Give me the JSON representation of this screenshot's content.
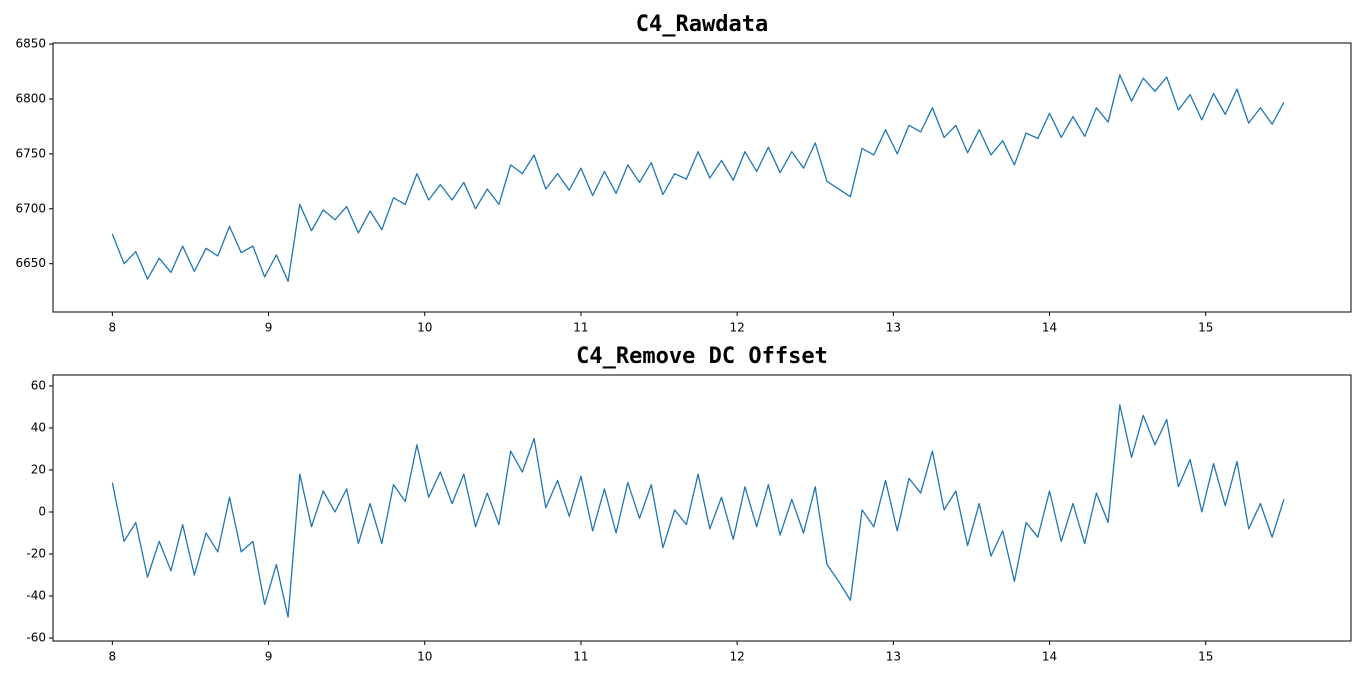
{
  "chart_data": [
    {
      "type": "line",
      "title": "C4_Rawdata",
      "x": [
        8.0,
        8.075,
        8.15,
        8.225,
        8.3,
        8.375,
        8.45,
        8.525,
        8.6,
        8.675,
        8.75,
        8.825,
        8.9,
        8.975,
        9.05,
        9.125,
        9.2,
        9.275,
        9.35,
        9.425,
        9.5,
        9.575,
        9.65,
        9.725,
        9.8,
        9.875,
        9.95,
        10.025,
        10.1,
        10.175,
        10.25,
        10.325,
        10.4,
        10.475,
        10.55,
        10.625,
        10.7,
        10.775,
        10.85,
        10.925,
        11.0,
        11.075,
        11.15,
        11.225,
        11.3,
        11.375,
        11.45,
        11.525,
        11.6,
        11.675,
        11.75,
        11.825,
        11.9,
        11.975,
        12.05,
        12.125,
        12.2,
        12.275,
        12.35,
        12.425,
        12.5,
        12.575,
        12.65,
        12.725,
        12.8,
        12.875,
        12.95,
        13.025,
        13.1,
        13.175,
        13.25,
        13.325,
        13.4,
        13.475,
        13.55,
        13.625,
        13.7,
        13.775,
        13.85,
        13.925,
        14.0,
        14.075,
        14.15,
        14.225,
        14.3,
        14.375,
        14.45,
        14.525,
        14.6,
        14.675,
        14.75,
        14.825,
        14.9,
        14.975,
        15.05,
        15.125,
        15.2,
        15.275,
        15.35,
        15.425,
        15.5
      ],
      "series": [
        {
          "color": "#1f77b4",
          "values": [
            6677,
            6650,
            6661,
            6636,
            6655,
            6642,
            6666,
            6643,
            6664,
            6657,
            6684,
            6660,
            6666,
            6638,
            6658,
            6634,
            6704,
            6680,
            6699,
            6690,
            6702,
            6678,
            6698,
            6681,
            6710,
            6704,
            6732,
            6708,
            6722,
            6708,
            6724,
            6700,
            6718,
            6704,
            6740,
            6732,
            6749,
            6718,
            6732,
            6717,
            6737,
            6712,
            6734,
            6714,
            6740,
            6724,
            6742,
            6713,
            6732,
            6727,
            6752,
            6728,
            6744,
            6726,
            6752,
            6734,
            6756,
            6733,
            6752,
            6737,
            6760,
            6725,
            6718,
            6711,
            6755,
            6749,
            6772,
            6750,
            6776,
            6770,
            6792,
            6765,
            6776,
            6751,
            6772,
            6749,
            6762,
            6740,
            6769,
            6764,
            6787,
            6765,
            6784,
            6766,
            6792,
            6779,
            6822,
            6798,
            6819,
            6807,
            6820,
            6790,
            6804,
            6781,
            6805,
            6786,
            6809,
            6778,
            6792,
            6777,
            6797
          ]
        }
      ],
      "xlim": [
        7.62,
        15.93
      ],
      "xticks": [
        8,
        9,
        10,
        11,
        12,
        13,
        14,
        15
      ],
      "ylim": [
        6606,
        6851
      ],
      "yticks": [
        6650,
        6700,
        6750,
        6800,
        6850
      ]
    },
    {
      "type": "line",
      "title": "C4_Remove DC Offset",
      "x": [
        8.0,
        8.075,
        8.15,
        8.225,
        8.3,
        8.375,
        8.45,
        8.525,
        8.6,
        8.675,
        8.75,
        8.825,
        8.9,
        8.975,
        9.05,
        9.125,
        9.2,
        9.275,
        9.35,
        9.425,
        9.5,
        9.575,
        9.65,
        9.725,
        9.8,
        9.875,
        9.95,
        10.025,
        10.1,
        10.175,
        10.25,
        10.325,
        10.4,
        10.475,
        10.55,
        10.625,
        10.7,
        10.775,
        10.85,
        10.925,
        11.0,
        11.075,
        11.15,
        11.225,
        11.3,
        11.375,
        11.45,
        11.525,
        11.6,
        11.675,
        11.75,
        11.825,
        11.9,
        11.975,
        12.05,
        12.125,
        12.2,
        12.275,
        12.35,
        12.425,
        12.5,
        12.575,
        12.65,
        12.725,
        12.8,
        12.875,
        12.95,
        13.025,
        13.1,
        13.175,
        13.25,
        13.325,
        13.4,
        13.475,
        13.55,
        13.625,
        13.7,
        13.775,
        13.85,
        13.925,
        14.0,
        14.075,
        14.15,
        14.225,
        14.3,
        14.375,
        14.45,
        14.525,
        14.6,
        14.675,
        14.75,
        14.825,
        14.9,
        14.975,
        15.05,
        15.125,
        15.2,
        15.275,
        15.35,
        15.425,
        15.5
      ],
      "series": [
        {
          "color": "#1f77b4",
          "values": [
            14,
            -14,
            -5,
            -31,
            -14,
            -28,
            -6,
            -30,
            -10,
            -19,
            7,
            -19,
            -14,
            -44,
            -25,
            -50,
            18,
            -7,
            10,
            0,
            11,
            -15,
            4,
            -15,
            13,
            5,
            32,
            7,
            19,
            4,
            18,
            -7,
            9,
            -6,
            29,
            19,
            35,
            2,
            15,
            -2,
            17,
            -9,
            11,
            -10,
            14,
            -3,
            13,
            -17,
            1,
            -6,
            18,
            -8,
            7,
            -13,
            12,
            -7,
            13,
            -11,
            6,
            -10,
            12,
            -25,
            -33,
            -42,
            1,
            -7,
            15,
            -9,
            16,
            9,
            29,
            1,
            10,
            -16,
            4,
            -21,
            -9,
            -33,
            -5,
            -12,
            10,
            -14,
            4,
            -15,
            9,
            -5,
            51,
            26,
            46,
            32,
            44,
            12,
            25,
            0,
            23,
            3,
            24,
            -8,
            4,
            -12,
            6
          ]
        }
      ],
      "xlim": [
        7.62,
        15.93
      ],
      "xticks": [
        8,
        9,
        10,
        11,
        12,
        13,
        14,
        15
      ],
      "ylim": [
        -61.4,
        65.2
      ],
      "yticks": [
        -60,
        -40,
        -20,
        0,
        20,
        40,
        60
      ]
    }
  ]
}
